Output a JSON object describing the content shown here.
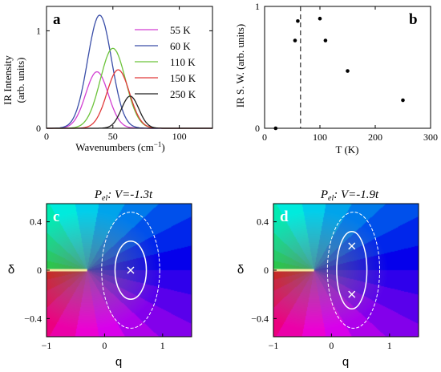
{
  "chart_data": [
    {
      "panel": "a",
      "type": "line",
      "xlabel_main": "Wavenumbers  (cm",
      "xlabel_sup": "−1",
      "xlabel_close": ")",
      "ylabel_line1": "IR  Intensity",
      "ylabel_line2": "(arb. units)",
      "xlim": [
        0,
        125
      ],
      "ylim": [
        0,
        1.25
      ],
      "xticks": [
        "0",
        "50",
        "100"
      ],
      "yticks": [
        "0",
        "1"
      ],
      "series": [
        {
          "name": "55 K",
          "color": "#d23fd2",
          "peak_x": 38,
          "amp": 0.58,
          "width": 8.5
        },
        {
          "name": "60 K",
          "color": "#3a4ea8",
          "peak_x": 40,
          "amp": 1.16,
          "width": 9.0
        },
        {
          "name": "110 K",
          "color": "#6cc33a",
          "peak_x": 50,
          "amp": 0.82,
          "width": 9.5
        },
        {
          "name": "150 K",
          "color": "#e03a3a",
          "peak_x": 54,
          "amp": 0.6,
          "width": 8.5
        },
        {
          "name": "250 K",
          "color": "#222222",
          "peak_x": 63,
          "amp": 0.33,
          "width": 6.5
        }
      ]
    },
    {
      "panel": "b",
      "type": "scatter",
      "xlabel": "T (K)",
      "ylabel": "IR S. W.  (arb. units)",
      "xlim": [
        0,
        300
      ],
      "ylim": [
        0,
        1.0
      ],
      "xticks": [
        "0",
        "100",
        "200",
        "300"
      ],
      "yticks": [
        "0",
        "1"
      ],
      "points": [
        {
          "x": 20,
          "y": 0.0
        },
        {
          "x": 55,
          "y": 0.72
        },
        {
          "x": 60,
          "y": 0.88
        },
        {
          "x": 100,
          "y": 0.9
        },
        {
          "x": 110,
          "y": 0.72
        },
        {
          "x": 150,
          "y": 0.47
        },
        {
          "x": 250,
          "y": 0.23
        }
      ],
      "vline_x": 65
    },
    {
      "panel": "c",
      "type": "heatmap",
      "title_p": "P",
      "title_sub": "el",
      "title_rest": ": V=-1.3t",
      "xlabel": "q",
      "ylabel": "δ",
      "xlim": [
        -1,
        1.5
      ],
      "ylim": [
        -0.55,
        0.55
      ],
      "xticks": [
        "−1",
        "0",
        "1"
      ],
      "yticks": [
        "0.4",
        "0",
        "−0.4"
      ],
      "branch_cut_end": -0.3,
      "markers": [
        {
          "q": 0.45,
          "d": 0.0
        }
      ],
      "contours": [
        {
          "q": 0.45,
          "d": 0.0,
          "rq": 0.27,
          "rd": 0.24
        },
        {
          "q": 0.45,
          "d": 0.0,
          "rq": 0.5,
          "rd": 0.48
        }
      ]
    },
    {
      "panel": "d",
      "type": "heatmap",
      "title_p": "P",
      "title_sub": "el",
      "title_rest": ": V=-1.9t",
      "xlabel": "q",
      "ylabel": "δ",
      "xlim": [
        -1,
        1.5
      ],
      "ylim": [
        -0.55,
        0.55
      ],
      "xticks": [
        "−1",
        "0",
        "1"
      ],
      "yticks": [
        "0.4",
        "0",
        "−0.4"
      ],
      "branch_cut_end": -0.3,
      "markers": [
        {
          "q": 0.35,
          "d": 0.2
        },
        {
          "q": 0.35,
          "d": -0.2
        }
      ],
      "contours": [
        {
          "q": 0.35,
          "d": 0.0,
          "rq": 0.26,
          "rd": 0.32
        },
        {
          "q": 0.38,
          "d": 0.0,
          "rq": 0.45,
          "rd": 0.48
        }
      ]
    }
  ]
}
